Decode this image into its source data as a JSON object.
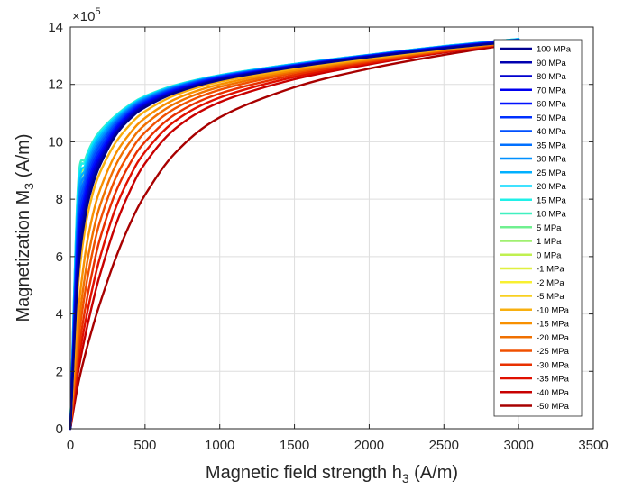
{
  "chart_data": {
    "type": "line",
    "xlabel": "Magnetic field strength h",
    "xlabel_sub": "3",
    "xlabel_unit": " (A/m)",
    "ylabel": "Magnetization M",
    "ylabel_sub": "3",
    "ylabel_unit": " (A/m)",
    "y_exponent_base": "×10",
    "y_exponent_power": "5",
    "xlim": [
      0,
      3500
    ],
    "ylim": [
      0,
      1400000
    ],
    "xticks": [
      0,
      500,
      1000,
      1500,
      2000,
      2500,
      3000,
      3500
    ],
    "xtick_labels": [
      "0",
      "500",
      "1000",
      "1500",
      "2000",
      "2500",
      "3000",
      "3500"
    ],
    "yticks": [
      0,
      200000,
      400000,
      600000,
      800000,
      1000000,
      1200000,
      1400000
    ],
    "ytick_labels": [
      "0",
      "2",
      "4",
      "6",
      "8",
      "10",
      "12",
      "14"
    ],
    "grid": true,
    "legend_position": "right",
    "series": [
      {
        "name": "100 MPa",
        "color": "#00008f",
        "x": [
          0,
          50,
          100,
          150,
          200,
          300,
          400,
          500,
          700,
          1000,
          1500,
          2000,
          2500,
          3000
        ],
        "y": [
          0,
          520000,
          740000,
          850000,
          920000,
          1020000,
          1080000,
          1120000,
          1170000,
          1215000,
          1260000,
          1295000,
          1325000,
          1350000
        ]
      },
      {
        "name": "90 MPa",
        "color": "#0000b0",
        "x": [
          0,
          50,
          100,
          150,
          200,
          300,
          400,
          500,
          700,
          1000,
          1500,
          2000,
          2500,
          3000
        ],
        "y": [
          0,
          550000,
          760000,
          865000,
          930000,
          1025000,
          1085000,
          1125000,
          1172000,
          1217000,
          1262000,
          1296000,
          1326000,
          1351000
        ]
      },
      {
        "name": "80 MPa",
        "color": "#0000cf",
        "x": [
          0,
          50,
          100,
          150,
          200,
          300,
          400,
          500,
          700,
          1000,
          1500,
          2000,
          2500,
          3000
        ],
        "y": [
          0,
          580000,
          780000,
          880000,
          940000,
          1030000,
          1090000,
          1128000,
          1175000,
          1219000,
          1263000,
          1297000,
          1327000,
          1352000
        ]
      },
      {
        "name": "70 MPa",
        "color": "#0000ef",
        "x": [
          0,
          50,
          100,
          150,
          200,
          300,
          400,
          500,
          700,
          1000,
          1500,
          2000,
          2500,
          3000
        ],
        "y": [
          0,
          610000,
          800000,
          895000,
          950000,
          1038000,
          1095000,
          1132000,
          1178000,
          1221000,
          1264000,
          1298000,
          1328000,
          1353000
        ]
      },
      {
        "name": "60 MPa",
        "color": "#0010ff",
        "x": [
          0,
          50,
          100,
          150,
          200,
          300,
          400,
          500,
          700,
          1000,
          1500,
          2000,
          2500,
          3000
        ],
        "y": [
          0,
          640000,
          820000,
          910000,
          962000,
          1045000,
          1100000,
          1136000,
          1181000,
          1223000,
          1265000,
          1299000,
          1329000,
          1354000
        ]
      },
      {
        "name": "50 MPa",
        "color": "#0030ff",
        "x": [
          0,
          50,
          100,
          150,
          200,
          300,
          400,
          500,
          700,
          1000,
          1500,
          2000,
          2500,
          3000
        ],
        "y": [
          0,
          670000,
          840000,
          925000,
          975000,
          1052000,
          1105000,
          1140000,
          1184000,
          1225000,
          1266000,
          1300000,
          1330000,
          1355000
        ]
      },
      {
        "name": "40 MPa",
        "color": "#0050ff",
        "x": [
          0,
          50,
          100,
          150,
          200,
          300,
          400,
          500,
          700,
          1000,
          1500,
          2000,
          2500,
          3000
        ],
        "y": [
          0,
          700000,
          860000,
          940000,
          988000,
          1060000,
          1110000,
          1144000,
          1187000,
          1227000,
          1267000,
          1301000,
          1331000,
          1356000
        ]
      },
      {
        "name": "35 MPa",
        "color": "#0070ff",
        "x": [
          0,
          50,
          100,
          150,
          200,
          300,
          400,
          500,
          700,
          1000,
          1500,
          2000,
          2500,
          3000
        ],
        "y": [
          0,
          725000,
          875000,
          952000,
          998000,
          1066000,
          1114000,
          1147000,
          1189000,
          1228000,
          1268000,
          1301000,
          1331000,
          1356000
        ]
      },
      {
        "name": "30 MPa",
        "color": "#0090ff",
        "x": [
          0,
          50,
          100,
          150,
          200,
          300,
          400,
          500,
          700,
          1000,
          1500,
          2000,
          2500,
          3000
        ],
        "y": [
          0,
          750000,
          890000,
          964000,
          1008000,
          1072000,
          1118000,
          1150000,
          1191000,
          1229000,
          1269000,
          1302000,
          1332000,
          1357000
        ]
      },
      {
        "name": "25 MPa",
        "color": "#00b0ff",
        "x": [
          0,
          50,
          100,
          150,
          200,
          300,
          400,
          500,
          700,
          1000,
          1500,
          2000,
          2500,
          3000
        ],
        "y": [
          0,
          775000,
          905000,
          976000,
          1018000,
          1078000,
          1122000,
          1153000,
          1193000,
          1230000,
          1270000,
          1302000,
          1332000,
          1357000
        ]
      },
      {
        "name": "20 MPa",
        "color": "#00d8ff",
        "x": [
          0,
          50,
          100,
          150,
          200,
          300,
          400,
          500,
          700,
          1000,
          1500,
          2000,
          2500,
          3000
        ],
        "y": [
          0,
          800000,
          920000,
          988000,
          1028000,
          1084000,
          1126000,
          1156000,
          1195000,
          1231000,
          1271000,
          1303000,
          1333000,
          1358000
        ]
      },
      {
        "name": "15 MPa",
        "color": "#20f0e8",
        "x": [
          0,
          50,
          100,
          150,
          200,
          300,
          400,
          500,
          700,
          1000,
          1500,
          2000,
          2500,
          3000
        ],
        "y": [
          0,
          820000,
          932000,
          996000,
          1034000,
          1088000,
          1128000,
          1158000,
          1196000,
          1232000,
          1271000,
          1303000,
          1333000,
          1358000
        ]
      },
      {
        "name": "10 MPa",
        "color": "#40f0c0",
        "x": [
          0,
          50,
          100,
          150,
          200,
          300,
          400,
          500,
          700,
          1000,
          1500,
          2000,
          2500,
          3000
        ],
        "y": [
          0,
          835000,
          940000,
          1000000,
          1038000,
          1090000,
          1130000,
          1159000,
          1197000,
          1232000,
          1271000,
          1303000,
          1333000,
          1358000
        ]
      },
      {
        "name": "5 MPa",
        "color": "#70f090",
        "x": [
          0,
          50,
          100,
          150,
          200,
          300,
          400,
          500,
          700,
          1000,
          1500,
          2000,
          2500,
          3000
        ],
        "y": [
          0,
          820000,
          932000,
          994000,
          1032000,
          1086000,
          1127000,
          1157000,
          1196000,
          1231000,
          1270000,
          1302000,
          1332000,
          1357000
        ]
      },
      {
        "name": "1 MPa",
        "color": "#a0f070",
        "x": [
          0,
          50,
          100,
          150,
          200,
          300,
          400,
          500,
          700,
          1000,
          1500,
          2000,
          2500,
          3000
        ],
        "y": [
          0,
          790000,
          915000,
          982000,
          1022000,
          1080000,
          1122000,
          1153000,
          1193000,
          1229000,
          1269000,
          1301000,
          1331000,
          1356000
        ]
      },
      {
        "name": "0 MPa",
        "color": "#c0f050",
        "x": [
          0,
          50,
          100,
          150,
          200,
          300,
          400,
          500,
          700,
          1000,
          1500,
          2000,
          2500,
          3000
        ],
        "y": [
          0,
          770000,
          905000,
          974000,
          1016000,
          1076000,
          1119000,
          1150000,
          1191000,
          1228000,
          1268000,
          1300000,
          1330000,
          1355000
        ]
      },
      {
        "name": "-1 MPa",
        "color": "#e0f040",
        "x": [
          0,
          50,
          100,
          150,
          200,
          300,
          400,
          500,
          700,
          1000,
          1500,
          2000,
          2500,
          3000
        ],
        "y": [
          0,
          740000,
          890000,
          962000,
          1006000,
          1068000,
          1113000,
          1145000,
          1187000,
          1225000,
          1266000,
          1299000,
          1329000,
          1355000
        ]
      },
      {
        "name": "-2 MPa",
        "color": "#f8f030",
        "x": [
          0,
          50,
          100,
          150,
          200,
          300,
          400,
          500,
          700,
          1000,
          1500,
          2000,
          2500,
          3000
        ],
        "y": [
          0,
          700000,
          865000,
          945000,
          992000,
          1058000,
          1106000,
          1140000,
          1183000,
          1222000,
          1264000,
          1297000,
          1328000,
          1354000
        ]
      },
      {
        "name": "-5 MPa",
        "color": "#f8d020",
        "x": [
          0,
          50,
          100,
          150,
          200,
          300,
          400,
          500,
          700,
          1000,
          1500,
          2000,
          2500,
          3000
        ],
        "y": [
          0,
          620000,
          810000,
          905000,
          960000,
          1038000,
          1092000,
          1130000,
          1177000,
          1218000,
          1261000,
          1295000,
          1326000,
          1353000
        ]
      },
      {
        "name": "-10 MPa",
        "color": "#f8b010",
        "x": [
          0,
          50,
          100,
          150,
          200,
          300,
          400,
          500,
          700,
          1000,
          1500,
          2000,
          2500,
          3000
        ],
        "y": [
          0,
          480000,
          700000,
          820000,
          895000,
          995000,
          1060000,
          1106000,
          1162000,
          1209000,
          1255000,
          1291000,
          1323000,
          1351000
        ]
      },
      {
        "name": "-15 MPa",
        "color": "#f89000",
        "x": [
          0,
          50,
          100,
          150,
          200,
          300,
          400,
          500,
          700,
          1000,
          1500,
          2000,
          2500,
          3000
        ],
        "y": [
          0,
          390000,
          610000,
          745000,
          835000,
          955000,
          1030000,
          1083000,
          1148000,
          1200000,
          1250000,
          1288000,
          1321000,
          1350000
        ]
      },
      {
        "name": "-20 MPa",
        "color": "#f07000",
        "x": [
          0,
          50,
          100,
          150,
          200,
          300,
          400,
          500,
          700,
          1000,
          1500,
          2000,
          2500,
          3000
        ],
        "y": [
          0,
          330000,
          540000,
          680000,
          780000,
          915000,
          1000000,
          1060000,
          1133000,
          1191000,
          1245000,
          1285000,
          1319000,
          1349000
        ]
      },
      {
        "name": "-25 MPa",
        "color": "#f05000",
        "x": [
          0,
          50,
          100,
          150,
          200,
          300,
          400,
          500,
          700,
          1000,
          1500,
          2000,
          2500,
          3000
        ],
        "y": [
          0,
          290000,
          480000,
          620000,
          725000,
          870000,
          965000,
          1033000,
          1116000,
          1181000,
          1240000,
          1282000,
          1317000,
          1348000
        ]
      },
      {
        "name": "-30 MPa",
        "color": "#e83000",
        "x": [
          0,
          50,
          100,
          150,
          200,
          300,
          400,
          500,
          700,
          1000,
          1500,
          2000,
          2500,
          3000
        ],
        "y": [
          0,
          250000,
          420000,
          555000,
          665000,
          820000,
          925000,
          1000000,
          1095000,
          1168000,
          1233000,
          1278000,
          1315000,
          1347000
        ]
      },
      {
        "name": "-35 MPa",
        "color": "#e01000",
        "x": [
          0,
          50,
          100,
          150,
          200,
          300,
          400,
          500,
          700,
          1000,
          1500,
          2000,
          2500,
          3000
        ],
        "y": [
          0,
          220000,
          370000,
          495000,
          600000,
          765000,
          880000,
          965000,
          1072000,
          1154000,
          1226000,
          1274000,
          1313000,
          1346000
        ]
      },
      {
        "name": "-40 MPa",
        "color": "#c80000",
        "x": [
          0,
          50,
          100,
          150,
          200,
          300,
          400,
          500,
          700,
          1000,
          1500,
          2000,
          2500,
          3000
        ],
        "y": [
          0,
          190000,
          325000,
          440000,
          540000,
          705000,
          830000,
          925000,
          1045000,
          1138000,
          1218000,
          1270000,
          1311000,
          1345000
        ]
      },
      {
        "name": "-50 MPa",
        "color": "#a80000",
        "x": [
          0,
          50,
          100,
          150,
          200,
          300,
          400,
          500,
          700,
          1000,
          1500,
          2000,
          2500,
          3000
        ],
        "y": [
          0,
          150000,
          260000,
          355000,
          440000,
          590000,
          715000,
          815000,
          960000,
          1085000,
          1190000,
          1255000,
          1303000,
          1343000
        ]
      }
    ]
  }
}
